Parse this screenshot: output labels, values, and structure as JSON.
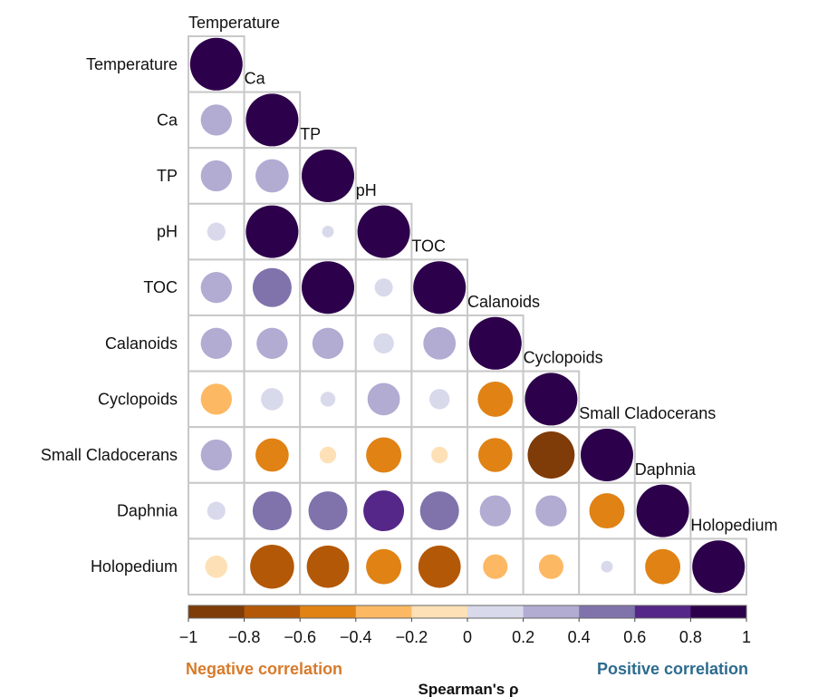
{
  "chart_data": {
    "type": "heatmap",
    "subtype": "correlation-circles-lower-triangle",
    "variables": [
      "Temperature",
      "Ca",
      "TP",
      "pH",
      "TOC",
      "Calanoids",
      "Cyclopoids",
      "Small Cladocerans",
      "Daphnia",
      "Holopedium"
    ],
    "matrix": [
      [
        1
      ],
      [
        0.35,
        1
      ],
      [
        0.35,
        0.4,
        1
      ],
      [
        0.12,
        1.0,
        0.05,
        1
      ],
      [
        0.35,
        0.55,
        1.0,
        0.12,
        1
      ],
      [
        0.35,
        0.35,
        0.35,
        0.15,
        0.38,
        1
      ],
      [
        -0.35,
        0.18,
        0.08,
        0.38,
        0.15,
        -0.45,
        1
      ],
      [
        0.35,
        -0.4,
        -0.1,
        -0.45,
        -0.1,
        -0.42,
        -0.8,
        1
      ],
      [
        0.12,
        0.55,
        0.55,
        0.6,
        0.55,
        0.35,
        0.35,
        -0.45,
        1
      ],
      [
        -0.18,
        -0.7,
        -0.65,
        -0.45,
        -0.65,
        -0.22,
        -0.22,
        0.05,
        -0.45,
        1
      ]
    ],
    "colorbar": {
      "range": [
        -1,
        1
      ],
      "ticks": [
        "−1",
        "−0.8",
        "−0.6",
        "−0.4",
        "−0.2",
        "0",
        "0.2",
        "0.4",
        "0.6",
        "0.8",
        "1"
      ],
      "colors": [
        "#7f3b08",
        "#b35806",
        "#e08214",
        "#fdb863",
        "#fee0b6",
        "#d8daeb",
        "#b2abd2",
        "#8073ac",
        "#542788",
        "#2d004b"
      ]
    },
    "negative_caption": "Negative correlation",
    "positive_caption": "Positive correlation",
    "xlabel": "Spearman's ρ"
  },
  "colors": {
    "grid": "#c8c8c8",
    "negative_text": "#d77a2a",
    "positive_text": "#2c6b8e"
  }
}
